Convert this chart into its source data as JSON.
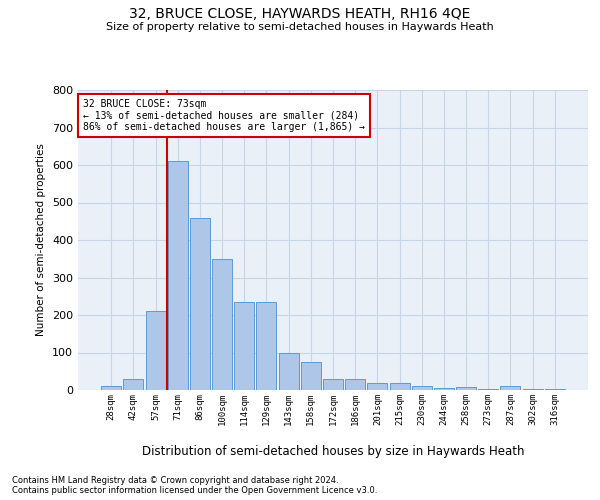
{
  "title": "32, BRUCE CLOSE, HAYWARDS HEATH, RH16 4QE",
  "subtitle": "Size of property relative to semi-detached houses in Haywards Heath",
  "xlabel": "Distribution of semi-detached houses by size in Haywards Heath",
  "ylabel": "Number of semi-detached properties",
  "categories": [
    "28sqm",
    "42sqm",
    "57sqm",
    "71sqm",
    "86sqm",
    "100sqm",
    "114sqm",
    "129sqm",
    "143sqm",
    "158sqm",
    "172sqm",
    "186sqm",
    "201sqm",
    "215sqm",
    "230sqm",
    "244sqm",
    "258sqm",
    "273sqm",
    "287sqm",
    "302sqm",
    "316sqm"
  ],
  "values": [
    10,
    30,
    210,
    610,
    460,
    350,
    235,
    235,
    100,
    75,
    30,
    30,
    18,
    18,
    10,
    5,
    8,
    3,
    10,
    3,
    2
  ],
  "bar_color": "#aec6e8",
  "bar_edge_color": "#5b9bd5",
  "grid_color": "#c8d4e8",
  "background_color": "#eaf0f8",
  "property_bar_index": 3,
  "annotation_line1": "32 BRUCE CLOSE: 73sqm",
  "annotation_line2": "← 13% of semi-detached houses are smaller (284)",
  "annotation_line3": "86% of semi-detached houses are larger (1,865) →",
  "redline_color": "#cc0000",
  "annotation_box_edgecolor": "#cc0000",
  "footnote1": "Contains HM Land Registry data © Crown copyright and database right 2024.",
  "footnote2": "Contains public sector information licensed under the Open Government Licence v3.0.",
  "ylim": [
    0,
    800
  ],
  "yticks": [
    0,
    100,
    200,
    300,
    400,
    500,
    600,
    700,
    800
  ]
}
